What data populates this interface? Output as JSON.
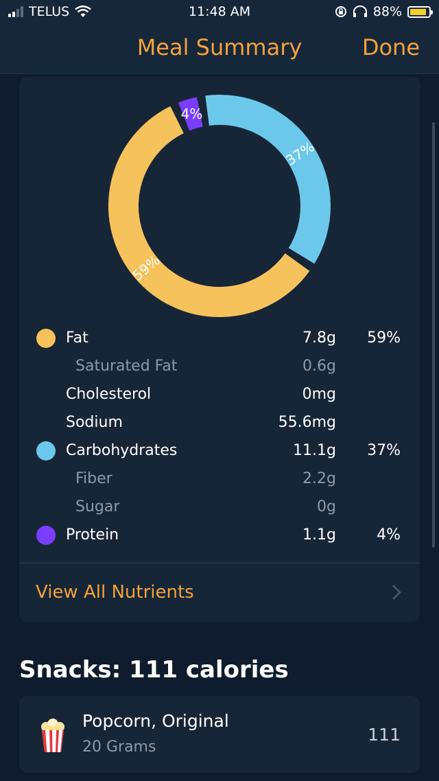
{
  "status_bar": {
    "carrier": "TELUS",
    "time": "11:48 AM",
    "battery": "88%",
    "battery_level": 0.88,
    "icons": [
      "signal-icon",
      "wifi-icon",
      "rotation-lock-icon",
      "headphones-icon",
      "battery-icon"
    ]
  },
  "nav": {
    "title": "Meal Summary",
    "done_label": "Done"
  },
  "chart_data": {
    "type": "pie",
    "style": "donut",
    "slices": [
      {
        "name": "Fat",
        "value": 59,
        "label": "59%",
        "color": "#f6c25b"
      },
      {
        "name": "Carbohydrates",
        "value": 37,
        "label": "37%",
        "color": "#6cc8ea"
      },
      {
        "name": "Protein",
        "value": 4,
        "label": "4%",
        "color": "#7a3dff"
      }
    ]
  },
  "nutrients": [
    {
      "name": "Fat",
      "amount": "7.8g",
      "percent": "59%",
      "color": "#f6c25b",
      "sub": false
    },
    {
      "name": "Saturated Fat",
      "amount": "0.6g",
      "percent": "",
      "color": "",
      "sub": true
    },
    {
      "name": "Cholesterol",
      "amount": "0mg",
      "percent": "",
      "color": "",
      "sub": false
    },
    {
      "name": "Sodium",
      "amount": "55.6mg",
      "percent": "",
      "color": "",
      "sub": false
    },
    {
      "name": "Carbohydrates",
      "amount": "11.1g",
      "percent": "37%",
      "color": "#6cc8ea",
      "sub": false
    },
    {
      "name": "Fiber",
      "amount": "2.2g",
      "percent": "",
      "color": "",
      "sub": true
    },
    {
      "name": "Sugar",
      "amount": "0g",
      "percent": "",
      "color": "",
      "sub": true
    },
    {
      "name": "Protein",
      "amount": "1.1g",
      "percent": "4%",
      "color": "#7a3dff",
      "sub": false
    }
  ],
  "view_all": {
    "label": "View All Nutrients",
    "icon": "chevron-right-icon"
  },
  "snacks": {
    "title": "Snacks: 111 calories",
    "items": [
      {
        "name": "Popcorn, Original",
        "quantity": "20 Grams",
        "calories": "111",
        "icon": "popcorn-icon"
      }
    ]
  },
  "colors": {
    "accent": "#f2a33a",
    "background": "#0f1c2d",
    "card": "#172637"
  }
}
